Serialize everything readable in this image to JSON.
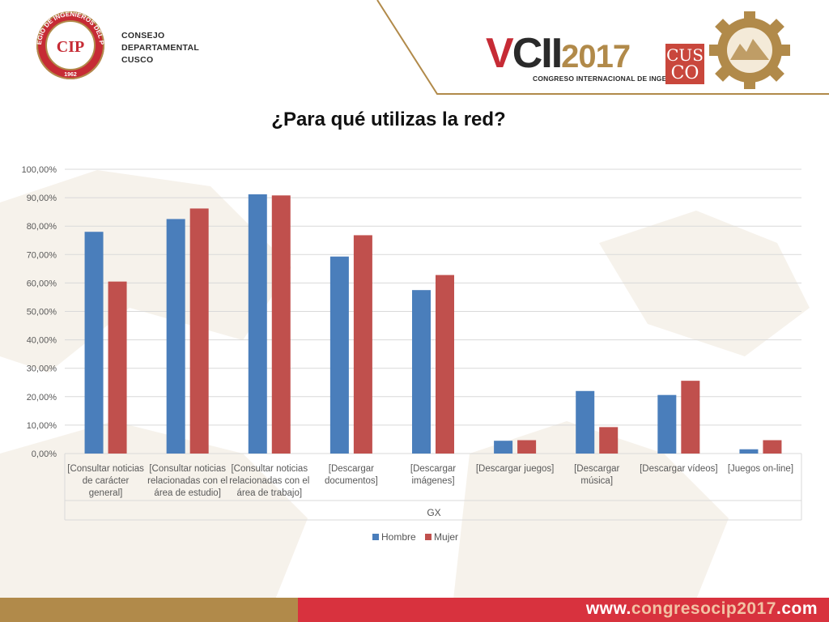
{
  "header": {
    "seal_text": "COLEGIO DE INGENIEROS DEL PERU",
    "seal_year": "1962",
    "seal_initials": "CIP",
    "council_lines": [
      "CONSEJO",
      "DEPARTAMENTAL",
      "CUSCO"
    ],
    "congress_v": "V",
    "congress_cii": "CII",
    "congress_year": "2017",
    "congress_subtitle": "CONGRESO INTERNACIONAL DE INGENIERÍA",
    "cusco_top": "CUS",
    "cusco_bottom": "CO"
  },
  "title": "¿Para qué utilizas la red?",
  "colors": {
    "hombre": "#4a7ebb",
    "mujer": "#c0504d",
    "gold": "#b18a4a",
    "red": "#d8323e"
  },
  "chart_data": {
    "type": "bar",
    "title": "¿Para qué utilizas la red?",
    "xlabel": "GX",
    "ylabel": "",
    "ylim": [
      0,
      100
    ],
    "yticks": [
      "0,00%",
      "10,00%",
      "20,00%",
      "30,00%",
      "40,00%",
      "50,00%",
      "60,00%",
      "70,00%",
      "80,00%",
      "90,00%",
      "100,00%"
    ],
    "grid": true,
    "legend_position": "bottom",
    "categories": [
      [
        "[Consultar noticias",
        "de carácter",
        "general]"
      ],
      [
        "[Consultar noticias",
        "relacionadas con el",
        "área de estudio]"
      ],
      [
        "[Consultar noticias",
        "relacionadas con el",
        "área de trabajo]"
      ],
      [
        "[Descargar",
        "documentos]"
      ],
      [
        "[Descargar",
        "imágenes]"
      ],
      [
        "[Descargar juegos]"
      ],
      [
        "[Descargar",
        "música]"
      ],
      [
        "[Descargar vídeos]"
      ],
      [
        "[Juegos on-line]"
      ]
    ],
    "series": [
      {
        "name": "Hombre",
        "values": [
          78,
          82.5,
          91.2,
          69.3,
          57.5,
          4.5,
          22,
          20.6,
          1.5
        ]
      },
      {
        "name": "Mujer",
        "values": [
          60.5,
          86.2,
          90.8,
          76.8,
          62.8,
          4.7,
          9.3,
          25.6,
          4.7
        ]
      }
    ]
  },
  "footer": {
    "url_prefix": "www.",
    "url_middle": "congresocip2017",
    "url_suffix": ".com"
  }
}
